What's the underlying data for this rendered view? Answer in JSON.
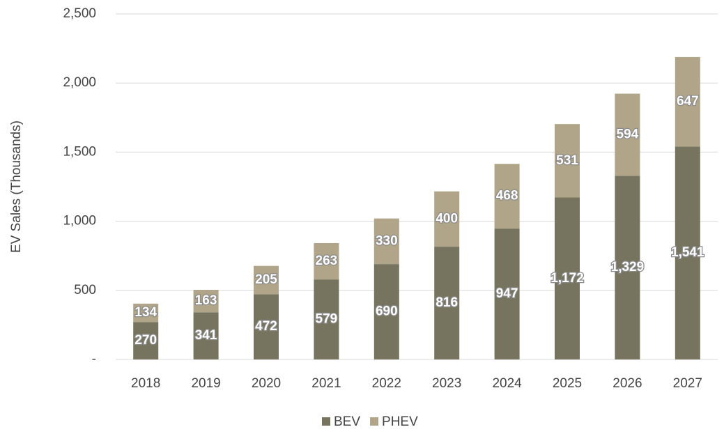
{
  "chart_data": {
    "type": "stacked_bar",
    "y_axis_label": "EV Sales (Thousands)",
    "categories": [
      "2018",
      "2019",
      "2020",
      "2021",
      "2022",
      "2023",
      "2024",
      "2025",
      "2026",
      "2027"
    ],
    "series": [
      {
        "name": "BEV",
        "color": "#76745e",
        "values": [
          270,
          341,
          472,
          579,
          690,
          816,
          947,
          1172,
          1329,
          1541
        ],
        "value_labels": [
          "270",
          "341",
          "472",
          "579",
          "690",
          "816",
          "947",
          "1,172",
          "1,329",
          "1,541"
        ]
      },
      {
        "name": "PHEV",
        "color": "#b0a588",
        "values": [
          134,
          163,
          205,
          263,
          330,
          400,
          468,
          531,
          594,
          647
        ],
        "value_labels": [
          "134",
          "163",
          "205",
          "263",
          "330",
          "400",
          "468",
          "531",
          "594",
          "647"
        ]
      }
    ],
    "ylim": [
      0,
      2500
    ],
    "yticks": [
      {
        "value": 0,
        "label": "-"
      },
      500,
      {
        "value": 1000,
        "label": "1,000"
      },
      {
        "value": 1500,
        "label": "1,500"
      },
      {
        "value": 2000,
        "label": "2,000"
      },
      {
        "value": 2500,
        "label": "2,500"
      }
    ],
    "grid": true,
    "legend": "bottom"
  }
}
